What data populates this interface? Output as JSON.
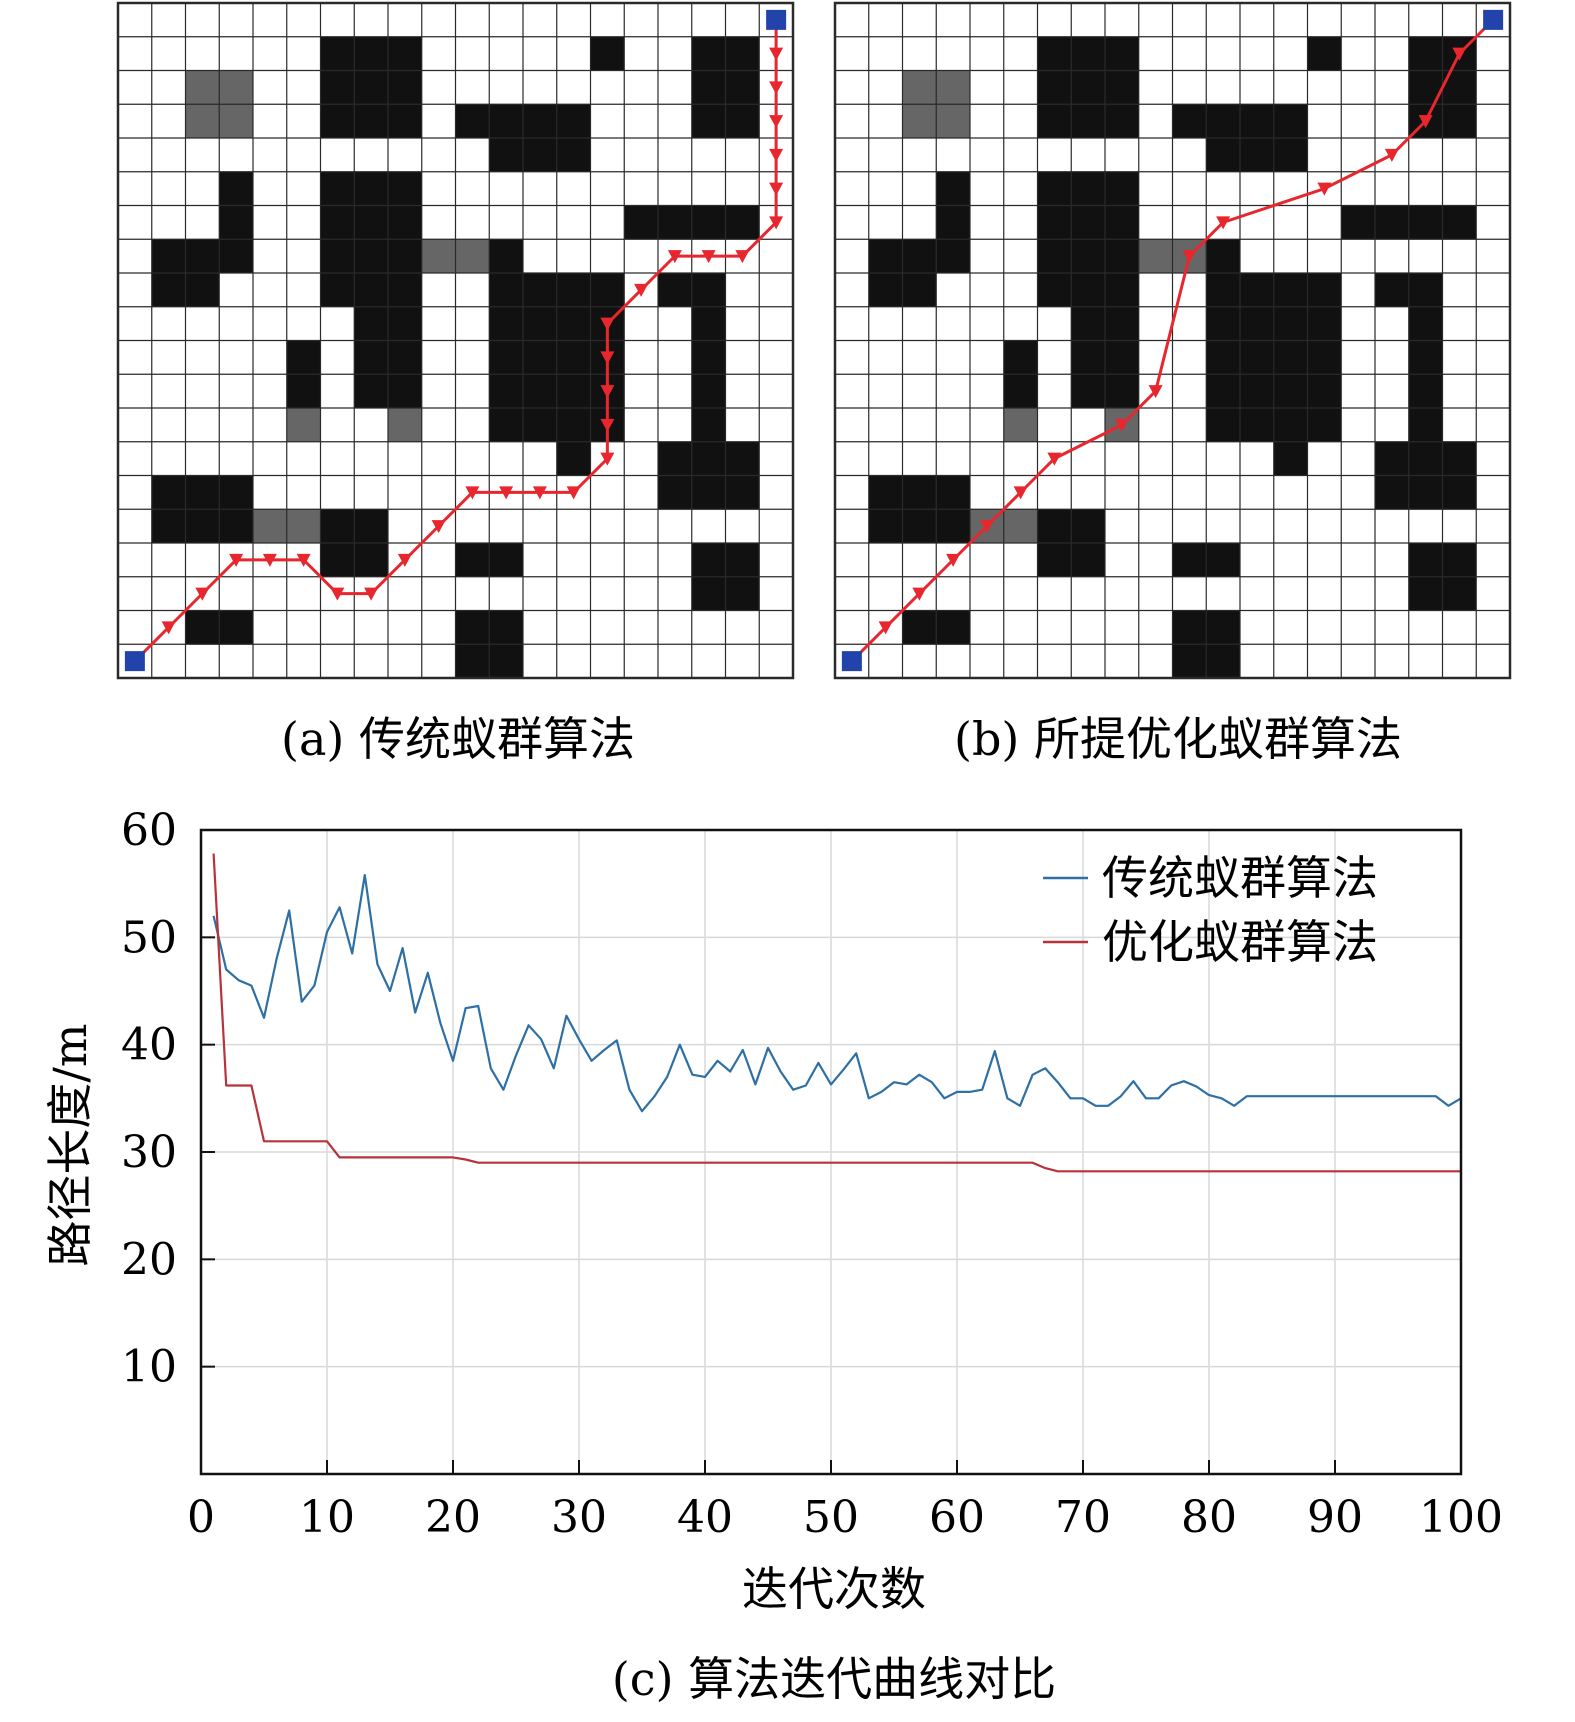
{
  "captions": {
    "a": "(a) 传统蚁群算法",
    "b": "(b) 所提优化蚁群算法",
    "c": "(c) 算法迭代曲线对比"
  },
  "grid_maps": {
    "size": 20,
    "obstacle_color": "#111111",
    "gray_cell_color": "#666666",
    "grid_line_color": "#2a2a2a",
    "path_color": "#e8262e",
    "start_goal_color": "#2244aa",
    "obstacles": [
      [
        6,
        1,
        3,
        3
      ],
      [
        14,
        1,
        1,
        1
      ],
      [
        17,
        1,
        2,
        3
      ],
      [
        10,
        3,
        4,
        1
      ],
      [
        11,
        4,
        3,
        1
      ],
      [
        3,
        5,
        1,
        3
      ],
      [
        6,
        5,
        3,
        4
      ],
      [
        15,
        6,
        4,
        1
      ],
      [
        1,
        7,
        2,
        2
      ],
      [
        11,
        7,
        1,
        6
      ],
      [
        12,
        8,
        3,
        5
      ],
      [
        16,
        8,
        2,
        1
      ],
      [
        7,
        9,
        2,
        3
      ],
      [
        17,
        9,
        1,
        4
      ],
      [
        5,
        10,
        1,
        2
      ],
      [
        13,
        13,
        1,
        1
      ],
      [
        16,
        13,
        3,
        2
      ],
      [
        1,
        14,
        3,
        2
      ],
      [
        6,
        15,
        2,
        2
      ],
      [
        10,
        16,
        2,
        1
      ],
      [
        17,
        16,
        2,
        2
      ],
      [
        2,
        18,
        2,
        1
      ],
      [
        10,
        18,
        2,
        2
      ]
    ],
    "gray_cells": [
      [
        2,
        2,
        2,
        2
      ],
      [
        9,
        7,
        2,
        1
      ],
      [
        5,
        12,
        1,
        1
      ],
      [
        8,
        12,
        1,
        1
      ],
      [
        4,
        15,
        2,
        1
      ]
    ],
    "start": [
      0.5,
      19.5
    ],
    "goal": [
      19.5,
      0.5
    ]
  },
  "panel_a": {
    "path": [
      [
        0.5,
        19.5
      ],
      [
        1.5,
        18.5
      ],
      [
        2.5,
        17.5
      ],
      [
        3.5,
        16.5
      ],
      [
        4.5,
        16.5
      ],
      [
        5.5,
        16.5
      ],
      [
        6.5,
        17.5
      ],
      [
        7.5,
        17.5
      ],
      [
        8.5,
        16.5
      ],
      [
        9.5,
        15.5
      ],
      [
        10.5,
        14.5
      ],
      [
        11.5,
        14.5
      ],
      [
        12.5,
        14.5
      ],
      [
        13.5,
        14.5
      ],
      [
        14.5,
        13.5
      ],
      [
        14.5,
        12.5
      ],
      [
        14.5,
        11.5
      ],
      [
        14.5,
        10.5
      ],
      [
        14.5,
        9.5
      ],
      [
        15.5,
        8.5
      ],
      [
        16.5,
        7.5
      ],
      [
        17.5,
        7.5
      ],
      [
        18.5,
        7.5
      ],
      [
        19.5,
        6.5
      ],
      [
        19.5,
        5.5
      ],
      [
        19.5,
        4.5
      ],
      [
        19.5,
        3.5
      ],
      [
        19.5,
        2.5
      ],
      [
        19.5,
        1.5
      ],
      [
        19.5,
        0.5
      ]
    ]
  },
  "panel_b": {
    "path": [
      [
        0.5,
        19.5
      ],
      [
        1.5,
        18.5
      ],
      [
        2.5,
        17.5
      ],
      [
        3.5,
        16.5
      ],
      [
        4.5,
        15.5
      ],
      [
        5.5,
        14.5
      ],
      [
        6.5,
        13.5
      ],
      [
        8.5,
        12.5
      ],
      [
        9.5,
        11.5
      ],
      [
        10.5,
        7.5
      ],
      [
        11.5,
        6.5
      ],
      [
        14.5,
        5.5
      ],
      [
        16.5,
        4.5
      ],
      [
        17.5,
        3.5
      ],
      [
        18.5,
        1.5
      ],
      [
        19.5,
        0.5
      ]
    ]
  },
  "chart_data": {
    "type": "line",
    "xlabel": "迭代次数",
    "ylabel": "路径长度/m",
    "xlim": [
      0,
      100
    ],
    "ylim": [
      0,
      60
    ],
    "xticks": [
      0,
      10,
      20,
      30,
      40,
      50,
      60,
      70,
      80,
      90,
      100
    ],
    "yticks": [
      10,
      20,
      30,
      40,
      50,
      60
    ],
    "grid": true,
    "legend_position": "top-right",
    "series": [
      {
        "name": "传统蚁群算法",
        "color": "#2e6fa4",
        "x": [
          1,
          2,
          3,
          4,
          5,
          6,
          7,
          8,
          9,
          10,
          11,
          12,
          13,
          14,
          15,
          16,
          17,
          18,
          19,
          20,
          21,
          22,
          23,
          24,
          25,
          26,
          27,
          28,
          29,
          30,
          31,
          32,
          33,
          34,
          35,
          36,
          37,
          38,
          39,
          40,
          41,
          42,
          43,
          44,
          45,
          46,
          47,
          48,
          49,
          50,
          51,
          52,
          53,
          54,
          55,
          56,
          57,
          58,
          59,
          60,
          61,
          62,
          63,
          64,
          65,
          66,
          67,
          68,
          69,
          70,
          71,
          72,
          73,
          74,
          75,
          76,
          77,
          78,
          79,
          80,
          81,
          82,
          83,
          84,
          85,
          86,
          87,
          88,
          89,
          90,
          91,
          92,
          93,
          94,
          95,
          96,
          97,
          98,
          99,
          100
        ],
        "values": [
          52.0,
          47.0,
          46.0,
          45.5,
          42.5,
          48.0,
          52.5,
          44.0,
          45.5,
          50.5,
          52.8,
          48.5,
          55.8,
          47.5,
          45.0,
          49.0,
          43.0,
          46.7,
          42.0,
          38.5,
          43.4,
          43.6,
          37.8,
          35.8,
          39.0,
          41.8,
          40.5,
          37.8,
          42.7,
          40.5,
          38.5,
          39.5,
          40.4,
          35.8,
          33.8,
          35.2,
          37.0,
          40.0,
          37.2,
          37.0,
          38.5,
          37.5,
          39.5,
          36.3,
          39.7,
          37.5,
          35.8,
          36.2,
          38.3,
          36.3,
          37.7,
          39.2,
          35.0,
          35.6,
          36.5,
          36.3,
          37.2,
          36.5,
          35.0,
          35.6,
          35.6,
          35.8,
          39.4,
          35.0,
          34.3,
          37.2,
          37.8,
          36.5,
          35.0,
          35.0,
          34.3,
          34.3,
          35.2,
          36.6,
          35.0,
          35.0,
          36.2,
          36.6,
          36.1,
          35.3,
          35.0,
          34.3,
          35.2,
          35.2,
          35.2,
          35.2,
          35.2,
          35.2,
          35.2,
          35.2,
          35.2,
          35.2,
          35.2,
          35.2,
          35.2,
          35.2,
          35.2,
          35.2,
          34.3,
          35.0
        ]
      },
      {
        "name": "优化蚁群算法",
        "color": "#b8323a",
        "x": [
          1,
          2,
          4,
          5,
          10,
          11,
          20,
          21,
          22,
          66,
          67,
          68,
          100
        ],
        "values": [
          57.8,
          36.2,
          36.2,
          31.0,
          31.0,
          29.5,
          29.5,
          29.3,
          29.0,
          29.0,
          28.5,
          28.2,
          28.2
        ]
      }
    ]
  }
}
